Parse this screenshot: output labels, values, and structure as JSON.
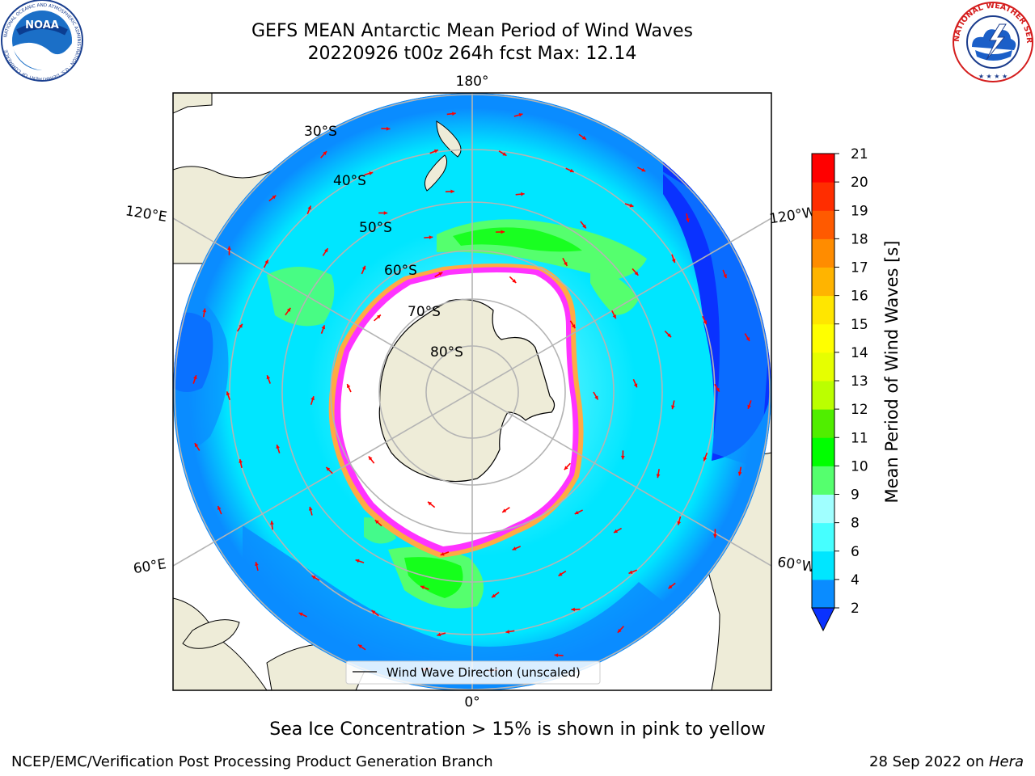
{
  "header": {
    "title_line1": "GEFS MEAN Antarctic Mean Period of Wind Waves",
    "title_line2": "20220926 t00z 264h fcst   Max: 12.14"
  },
  "logos": {
    "noaa": {
      "text": "NOAA",
      "ring_text": "NATIONAL OCEANIC AND ATMOSPHERIC ADMINISTRATION · U.S. DEPARTMENT OF COMMERCE"
    },
    "nws": {
      "ring_text": "NATIONAL WEATHER SERVICE"
    }
  },
  "map": {
    "projection": "south-polar-stereographic",
    "longitude_labels": {
      "top": "180°",
      "bottom": "0°",
      "left_upper": "120°E",
      "left_lower": "60°E",
      "right_upper": "120°W",
      "right_lower": "60°W"
    },
    "latitude_labels": [
      "30°S",
      "40°S",
      "50°S",
      "60°S",
      "70°S",
      "80°S"
    ],
    "colors": {
      "land": "#eeecd8",
      "gridline": "#b4b4b4",
      "arrow": "#ff0000",
      "ice_edge": "#ff33ff",
      "ice_edge_outer": "#ffaa44"
    },
    "legend": {
      "label": "Wind Wave Direction (unscaled)",
      "placement": "lower-center"
    }
  },
  "colorbar": {
    "label": "Mean Period of Wind Waves [s]",
    "ticks": [
      "2",
      "4",
      "6",
      "8",
      "9",
      "10",
      "11",
      "12",
      "13",
      "14",
      "15",
      "16",
      "17",
      "18",
      "19",
      "20",
      "21"
    ],
    "colors": [
      "#0a32ff",
      "#0a8cff",
      "#00e6ff",
      "#46ffff",
      "#a0ffff",
      "#55ff6e",
      "#00ff00",
      "#50ee00",
      "#bbff00",
      "#e6ff00",
      "#ffff00",
      "#ffe600",
      "#ffb400",
      "#ff8c00",
      "#ff5a00",
      "#ff2d00",
      "#ff0000"
    ],
    "extend": "min"
  },
  "caption": "Sea Ice Concentration > 15% is shown in pink to yellow",
  "footer": {
    "left": "NCEP/EMC/Verification Post Processing Product Generation Branch",
    "right_prefix": "28 Sep 2022 on ",
    "right_host": "Hera"
  }
}
